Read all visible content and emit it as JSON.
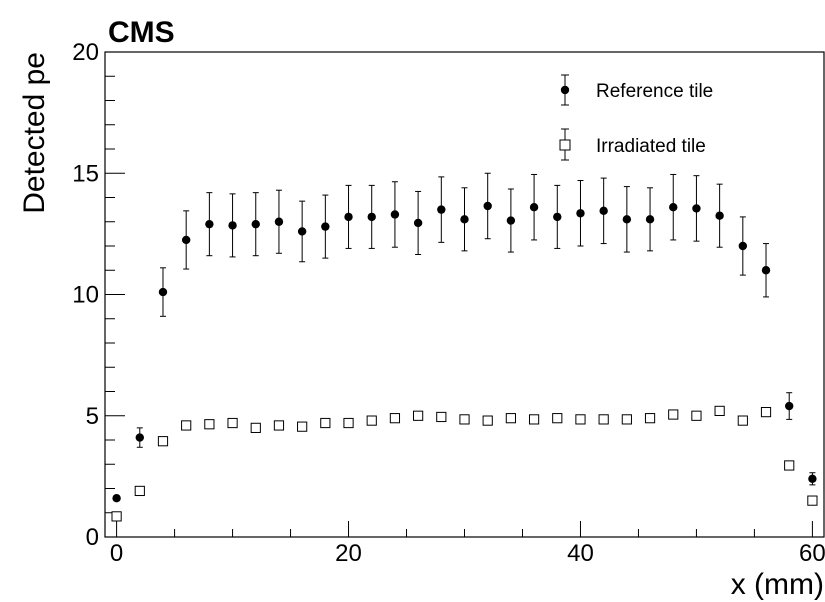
{
  "chart_data": {
    "type": "scatter",
    "brand_label": "CMS",
    "xlabel": "x (mm)",
    "ylabel": "Detected pe",
    "xlim": [
      -1,
      61
    ],
    "ylim": [
      0,
      20
    ],
    "x_ticks": [
      0,
      20,
      40,
      60
    ],
    "y_ticks": [
      0,
      5,
      10,
      15,
      20
    ],
    "legend_position": "top-right",
    "series": [
      {
        "name": "Reference tile",
        "marker": "filled-circle",
        "color": "#000000",
        "x": [
          0,
          2,
          4,
          6,
          8,
          10,
          12,
          14,
          16,
          18,
          20,
          22,
          24,
          26,
          28,
          30,
          32,
          34,
          36,
          38,
          40,
          42,
          44,
          46,
          48,
          50,
          52,
          54,
          56,
          58,
          60
        ],
        "y": [
          1.6,
          4.1,
          10.1,
          12.25,
          12.9,
          12.85,
          12.9,
          13.0,
          12.6,
          12.8,
          13.2,
          13.2,
          13.3,
          12.95,
          13.5,
          13.1,
          13.65,
          13.05,
          13.6,
          13.2,
          13.35,
          13.45,
          13.1,
          13.1,
          13.6,
          13.55,
          13.25,
          12.0,
          11.0,
          5.4,
          2.4
        ],
        "err": [
          0.1,
          0.4,
          1.0,
          1.2,
          1.3,
          1.3,
          1.3,
          1.3,
          1.25,
          1.3,
          1.3,
          1.3,
          1.35,
          1.3,
          1.35,
          1.3,
          1.35,
          1.3,
          1.35,
          1.3,
          1.35,
          1.35,
          1.35,
          1.3,
          1.35,
          1.35,
          1.3,
          1.2,
          1.1,
          0.55,
          0.25
        ]
      },
      {
        "name": "Irradiated tile",
        "marker": "open-square",
        "color": "#000000",
        "x": [
          0,
          2,
          4,
          6,
          8,
          10,
          12,
          14,
          16,
          18,
          20,
          22,
          24,
          26,
          28,
          30,
          32,
          34,
          36,
          38,
          40,
          42,
          44,
          46,
          48,
          50,
          52,
          54,
          56,
          58,
          60
        ],
        "y": [
          0.85,
          1.9,
          3.95,
          4.6,
          4.65,
          4.7,
          4.5,
          4.6,
          4.55,
          4.7,
          4.7,
          4.8,
          4.9,
          5.0,
          4.95,
          4.85,
          4.8,
          4.9,
          4.85,
          4.9,
          4.85,
          4.85,
          4.85,
          4.9,
          5.05,
          5.0,
          5.2,
          4.8,
          5.15,
          2.95,
          1.5
        ]
      }
    ]
  }
}
